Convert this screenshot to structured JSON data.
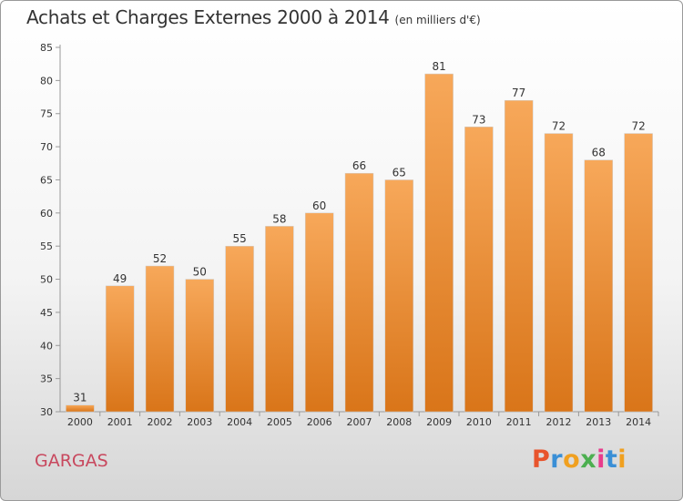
{
  "header": {
    "title": "Achats et Charges Externes 2000 à 2014",
    "subtitle": "(en milliers d'€)"
  },
  "commune": "GARGAS",
  "logo": {
    "text": "Proxiti",
    "colors": [
      "#e8542c",
      "#3a8fd6",
      "#f0a020",
      "#4caf50",
      "#e83c8c",
      "#3a8fd6",
      "#f0a020"
    ]
  },
  "colors": {
    "bar_top": "#f7a85a",
    "bar_bottom": "#d97519",
    "commune": "#c8485e"
  },
  "chart_data": {
    "type": "bar",
    "title": "Achats et Charges Externes 2000 à 2014",
    "subtitle": "(en milliers d'€)",
    "categories": [
      "2000",
      "2001",
      "2002",
      "2003",
      "2004",
      "2005",
      "2006",
      "2007",
      "2008",
      "2009",
      "2010",
      "2011",
      "2012",
      "2013",
      "2014"
    ],
    "values": [
      31,
      49,
      52,
      50,
      55,
      58,
      60,
      66,
      65,
      81,
      73,
      77,
      72,
      68,
      72
    ],
    "ylim": [
      30,
      85
    ],
    "yticks": [
      30,
      35,
      40,
      45,
      50,
      55,
      60,
      65,
      70,
      75,
      80,
      85
    ],
    "grid": false,
    "data_labels": true
  }
}
